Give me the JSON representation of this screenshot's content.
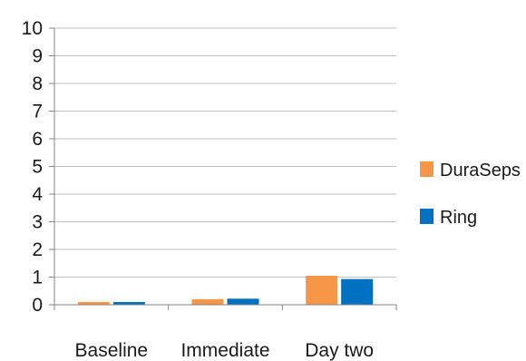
{
  "chart_data": {
    "type": "bar",
    "categories": [
      "Baseline",
      "Immediate",
      "Day two"
    ],
    "series": [
      {
        "name": "DuraSeps",
        "values": [
          0.1,
          0.2,
          1.05
        ],
        "color": "#F79646"
      },
      {
        "name": "Ring",
        "values": [
          0.1,
          0.22,
          0.93
        ],
        "color": "#0070C0"
      }
    ],
    "yticks": [
      "0",
      "1",
      "2",
      "3",
      "4",
      "5",
      "6",
      "7",
      "8",
      "9",
      "10"
    ],
    "ylim": [
      0,
      10
    ],
    "grid": true,
    "legend_position": "right",
    "colors": {
      "grid": "#bfbfbf",
      "axis": "#868686"
    }
  }
}
